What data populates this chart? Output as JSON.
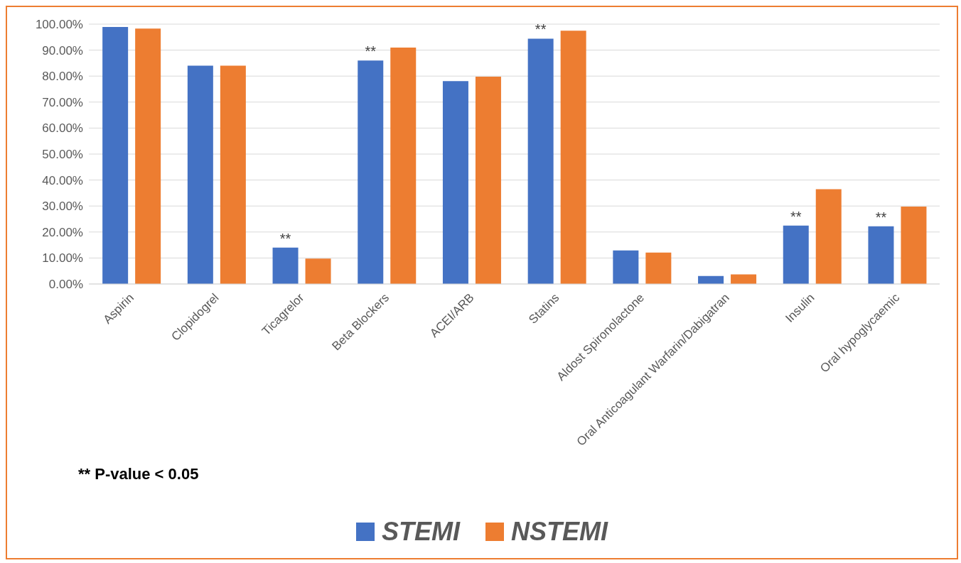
{
  "chart_data": {
    "type": "bar",
    "categories": [
      "Aspirin",
      "Clopidogrel",
      "Ticagrelor",
      "Beta Blockers",
      "ACEI/ARB",
      "Statins",
      "Aldost Spironolactone",
      "Oral Anticoagulant Warfarin/Dabigatran",
      "Insulin",
      "Oral hypoglycaemic"
    ],
    "series": [
      {
        "name": "STEMI",
        "color": "#4472c4",
        "values": [
          98.9,
          84.0,
          14.0,
          86.0,
          78.1,
          94.4,
          12.9,
          3.1,
          22.5,
          22.2
        ],
        "value_labels": [
          null,
          null,
          "**",
          "**",
          null,
          "**",
          null,
          null,
          "**",
          "**"
        ]
      },
      {
        "name": "NSTEMI",
        "color": "#ed7d31",
        "values": [
          98.3,
          84.0,
          9.8,
          91.0,
          79.8,
          97.5,
          12.1,
          3.7,
          36.5,
          29.8
        ]
      }
    ],
    "ylim": [
      0,
      100
    ],
    "yticks": [
      {
        "value": 0,
        "label": "0.00%"
      },
      {
        "value": 10,
        "label": "10.00%"
      },
      {
        "value": 20,
        "label": "20.00%"
      },
      {
        "value": 30,
        "label": "30.00%"
      },
      {
        "value": 40,
        "label": "40.00%"
      },
      {
        "value": 50,
        "label": "50.00%"
      },
      {
        "value": 60,
        "label": "60.00%"
      },
      {
        "value": 70,
        "label": "70.00%"
      },
      {
        "value": 80,
        "label": "80.00%"
      },
      {
        "value": 90,
        "label": "90.00%"
      },
      {
        "value": 100,
        "label": "100.00%"
      }
    ],
    "grid": "y",
    "legend": "bottom",
    "annotations": [
      "** P-value < 0.05"
    ]
  }
}
